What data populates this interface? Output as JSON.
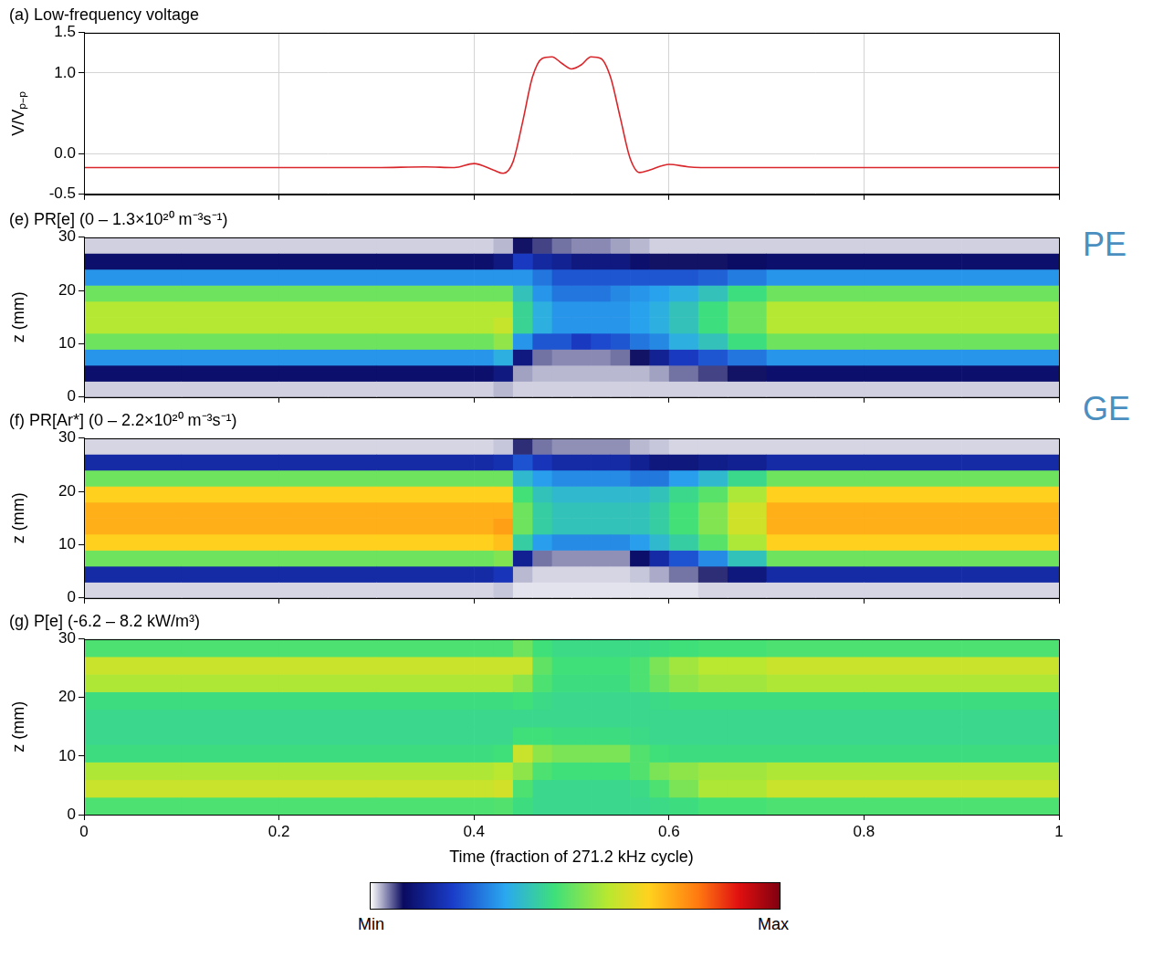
{
  "chart_data": [
    {
      "type": "line",
      "title": "(a) Low-frequency voltage",
      "y_label": "V/Vₚ₋ₚ",
      "xlim": [
        0,
        1
      ],
      "xticks": [
        0,
        0.2,
        0.4,
        0.6,
        0.8,
        1
      ],
      "ylim": [
        -0.5,
        1.5
      ],
      "yticks": [
        -0.5,
        {
          "value": 0,
          "label": "0.0"
        },
        {
          "value": 1,
          "label": "1.0"
        },
        1.5
      ],
      "grid": true,
      "tick_labels": "y",
      "x": [
        0,
        0.1,
        0.2,
        0.3,
        0.35,
        0.38,
        0.4,
        0.42,
        0.43,
        0.44,
        0.45,
        0.46,
        0.47,
        0.48,
        0.49,
        0.5,
        0.51,
        0.52,
        0.53,
        0.54,
        0.55,
        0.56,
        0.57,
        0.58,
        0.6,
        0.62,
        0.65,
        0.7,
        0.8,
        0.9,
        1
      ],
      "series": [
        {
          "name": "Low-frequency voltage",
          "color": "#d9262b",
          "values": [
            -0.17,
            -0.17,
            -0.17,
            -0.17,
            -0.16,
            -0.17,
            -0.12,
            -0.2,
            -0.24,
            -0.1,
            0.4,
            0.95,
            1.18,
            1.2,
            1.12,
            1.05,
            1.1,
            1.2,
            1.18,
            0.95,
            0.45,
            -0.05,
            -0.23,
            -0.2,
            -0.13,
            -0.16,
            -0.17,
            -0.17,
            -0.17,
            -0.17,
            -0.17
          ]
        }
      ]
    },
    {
      "type": "heatmap",
      "title": "(e) PR[e] (0 – 1.3×10²⁰ m⁻³s⁻¹)",
      "y_label": "z (mm)",
      "xlim": [
        0,
        1
      ],
      "xticks": [
        0,
        0.2,
        0.4,
        0.6,
        0.8,
        1
      ],
      "ylim": [
        0,
        30
      ],
      "yticks": [
        0,
        10,
        20,
        30
      ],
      "grid": false,
      "tick_labels": "y",
      "annotations": [
        "PE",
        "GE"
      ],
      "color_range": [
        0,
        1.3
      ],
      "x_bins": [
        0,
        0.1,
        0.2,
        0.3,
        0.4,
        0.42,
        0.44,
        0.46,
        0.48,
        0.5,
        0.52,
        0.54,
        0.56,
        0.58,
        0.6,
        0.63,
        0.66,
        0.7,
        0.8,
        0.9,
        1
      ],
      "z_bins": [
        0,
        3,
        6,
        9,
        12,
        15,
        18,
        21,
        24,
        27,
        30
      ],
      "cells": [
        [
          0.02,
          0.12,
          0.4,
          0.65,
          0.75,
          0.75,
          0.65,
          0.4,
          0.12,
          0.02
        ],
        [
          0.02,
          0.12,
          0.4,
          0.65,
          0.75,
          0.75,
          0.65,
          0.4,
          0.12,
          0.02
        ],
        [
          0.02,
          0.12,
          0.4,
          0.65,
          0.75,
          0.75,
          0.65,
          0.4,
          0.12,
          0.02
        ],
        [
          0.02,
          0.12,
          0.4,
          0.65,
          0.75,
          0.75,
          0.65,
          0.4,
          0.12,
          0.02
        ],
        [
          0.02,
          0.12,
          0.4,
          0.65,
          0.75,
          0.75,
          0.65,
          0.4,
          0.12,
          0.02
        ],
        [
          0.03,
          0.15,
          0.45,
          0.7,
          0.78,
          0.75,
          0.65,
          0.4,
          0.15,
          0.03
        ],
        [
          0.02,
          0.04,
          0.15,
          0.4,
          0.55,
          0.55,
          0.5,
          0.4,
          0.25,
          0.1
        ],
        [
          0.02,
          0.03,
          0.06,
          0.3,
          0.45,
          0.45,
          0.4,
          0.35,
          0.2,
          0.08
        ],
        [
          0.02,
          0.03,
          0.05,
          0.3,
          0.4,
          0.4,
          0.35,
          0.3,
          0.18,
          0.06
        ],
        [
          0.02,
          0.03,
          0.05,
          0.25,
          0.4,
          0.4,
          0.35,
          0.3,
          0.15,
          0.05
        ],
        [
          0.02,
          0.03,
          0.05,
          0.28,
          0.4,
          0.4,
          0.35,
          0.3,
          0.15,
          0.05
        ],
        [
          0.02,
          0.03,
          0.06,
          0.3,
          0.4,
          0.4,
          0.38,
          0.3,
          0.15,
          0.04
        ],
        [
          0.02,
          0.03,
          0.1,
          0.35,
          0.42,
          0.42,
          0.4,
          0.3,
          0.12,
          0.03
        ],
        [
          0.02,
          0.04,
          0.18,
          0.38,
          0.45,
          0.45,
          0.42,
          0.3,
          0.1,
          0.02
        ],
        [
          0.02,
          0.06,
          0.25,
          0.45,
          0.5,
          0.5,
          0.45,
          0.3,
          0.1,
          0.02
        ],
        [
          0.02,
          0.08,
          0.3,
          0.5,
          0.58,
          0.58,
          0.5,
          0.32,
          0.1,
          0.02
        ],
        [
          0.02,
          0.1,
          0.35,
          0.58,
          0.65,
          0.65,
          0.58,
          0.36,
          0.11,
          0.02
        ],
        [
          0.02,
          0.12,
          0.4,
          0.65,
          0.75,
          0.75,
          0.65,
          0.4,
          0.12,
          0.02
        ],
        [
          0.02,
          0.12,
          0.4,
          0.65,
          0.75,
          0.75,
          0.65,
          0.4,
          0.12,
          0.02
        ],
        [
          0.02,
          0.12,
          0.4,
          0.65,
          0.75,
          0.75,
          0.65,
          0.4,
          0.12,
          0.02
        ]
      ]
    },
    {
      "type": "heatmap",
      "title": "(f) PR[Ar*] (0 – 2.2×10²⁰ m⁻³s⁻¹)",
      "y_label": "z (mm)",
      "xlim": [
        0,
        1
      ],
      "xticks": [
        0,
        0.2,
        0.4,
        0.6,
        0.8,
        1
      ],
      "ylim": [
        0,
        30
      ],
      "yticks": [
        0,
        10,
        20,
        30
      ],
      "grid": false,
      "tick_labels": "y",
      "color_range": [
        0,
        2.2
      ],
      "x_bins": [
        0,
        0.1,
        0.2,
        0.3,
        0.4,
        0.42,
        0.44,
        0.46,
        0.48,
        0.5,
        0.52,
        0.54,
        0.56,
        0.58,
        0.6,
        0.63,
        0.66,
        0.7,
        0.8,
        0.9,
        1
      ],
      "z_bins": [
        0,
        3,
        6,
        9,
        12,
        15,
        18,
        21,
        24,
        27,
        30
      ],
      "cells": [
        [
          0.03,
          0.35,
          1.1,
          1.5,
          1.6,
          1.6,
          1.5,
          1.1,
          0.35,
          0.03
        ],
        [
          0.03,
          0.35,
          1.1,
          1.5,
          1.6,
          1.6,
          1.5,
          1.1,
          0.35,
          0.03
        ],
        [
          0.03,
          0.35,
          1.1,
          1.5,
          1.6,
          1.6,
          1.5,
          1.1,
          0.35,
          0.03
        ],
        [
          0.03,
          0.35,
          1.1,
          1.5,
          1.6,
          1.6,
          1.5,
          1.1,
          0.35,
          0.03
        ],
        [
          0.03,
          0.35,
          1.1,
          1.5,
          1.6,
          1.6,
          1.5,
          1.1,
          0.35,
          0.03
        ],
        [
          0.04,
          0.4,
          1.15,
          1.55,
          1.65,
          1.6,
          1.5,
          1.1,
          0.38,
          0.04
        ],
        [
          0.02,
          0.05,
          0.3,
          0.9,
          1.1,
          1.1,
          1.0,
          0.8,
          0.5,
          0.15
        ],
        [
          0.02,
          0.03,
          0.1,
          0.7,
          0.9,
          0.9,
          0.85,
          0.7,
          0.4,
          0.1
        ],
        [
          0.02,
          0.03,
          0.08,
          0.65,
          0.85,
          0.85,
          0.8,
          0.65,
          0.35,
          0.08
        ],
        [
          0.02,
          0.03,
          0.08,
          0.65,
          0.85,
          0.85,
          0.8,
          0.65,
          0.35,
          0.08
        ],
        [
          0.02,
          0.03,
          0.08,
          0.65,
          0.85,
          0.85,
          0.8,
          0.65,
          0.35,
          0.08
        ],
        [
          0.02,
          0.03,
          0.08,
          0.65,
          0.85,
          0.85,
          0.8,
          0.65,
          0.35,
          0.08
        ],
        [
          0.02,
          0.04,
          0.2,
          0.7,
          0.85,
          0.85,
          0.8,
          0.6,
          0.3,
          0.05
        ],
        [
          0.02,
          0.06,
          0.35,
          0.8,
          0.9,
          0.9,
          0.85,
          0.6,
          0.25,
          0.04
        ],
        [
          0.02,
          0.1,
          0.5,
          0.9,
          1.0,
          1.0,
          0.95,
          0.7,
          0.25,
          0.03
        ],
        [
          0.03,
          0.15,
          0.65,
          1.05,
          1.15,
          1.15,
          1.05,
          0.8,
          0.28,
          0.03
        ],
        [
          0.03,
          0.25,
          0.85,
          1.25,
          1.35,
          1.35,
          1.25,
          0.95,
          0.3,
          0.03
        ],
        [
          0.03,
          0.35,
          1.1,
          1.5,
          1.6,
          1.6,
          1.5,
          1.1,
          0.35,
          0.03
        ],
        [
          0.03,
          0.35,
          1.1,
          1.5,
          1.6,
          1.6,
          1.5,
          1.1,
          0.35,
          0.03
        ],
        [
          0.03,
          0.35,
          1.1,
          1.5,
          1.6,
          1.6,
          1.5,
          1.1,
          0.35,
          0.03
        ]
      ]
    },
    {
      "type": "heatmap",
      "title": "(g) P[e] (-6.2 – 8.2 kW/m³)",
      "y_label": "z (mm)",
      "x_label": "Time (fraction of 271.2 kHz cycle)",
      "xlim": [
        0,
        1
      ],
      "xticks": [
        0,
        0.2,
        0.4,
        0.6,
        0.8,
        1
      ],
      "ylim": [
        0,
        30
      ],
      "yticks": [
        0,
        10,
        20,
        30
      ],
      "grid": false,
      "color_range": [
        -6.2,
        8.2
      ],
      "x_bins": [
        0,
        0.1,
        0.2,
        0.3,
        0.4,
        0.42,
        0.44,
        0.46,
        0.48,
        0.5,
        0.52,
        0.54,
        0.56,
        0.58,
        0.6,
        0.63,
        0.66,
        0.7,
        0.8,
        0.9,
        1
      ],
      "z_bins": [
        0,
        3,
        6,
        9,
        12,
        15,
        18,
        21,
        24,
        27,
        30
      ],
      "cells": [
        [
          0.5,
          2.5,
          2.0,
          0.2,
          0,
          0,
          0.2,
          2.0,
          2.5,
          0.5
        ],
        [
          0.5,
          2.5,
          2.0,
          0.2,
          0,
          0,
          0.2,
          2.0,
          2.5,
          0.5
        ],
        [
          0.5,
          2.5,
          2.0,
          0.2,
          0,
          0,
          0.2,
          2.0,
          2.5,
          0.5
        ],
        [
          0.5,
          2.5,
          2.0,
          0.2,
          0,
          0,
          0.2,
          2.0,
          2.5,
          0.5
        ],
        [
          0.5,
          2.5,
          2.0,
          0.2,
          0,
          0,
          0.2,
          2.0,
          2.5,
          0.5
        ],
        [
          0.6,
          2.7,
          2.2,
          0.3,
          0,
          0,
          0.2,
          2.0,
          2.5,
          0.5
        ],
        [
          0.2,
          0.5,
          1.5,
          2.5,
          0.3,
          0,
          0.3,
          1.5,
          2.5,
          1.0
        ],
        [
          0,
          0,
          0.5,
          1.5,
          0.3,
          0,
          0.1,
          0.5,
          0.8,
          0.3
        ],
        [
          0,
          0,
          0.3,
          1.2,
          0.2,
          0,
          0,
          0.2,
          0.3,
          0.1
        ],
        [
          0,
          0,
          0.3,
          1.2,
          0.2,
          0,
          0,
          0.2,
          0.3,
          0.1
        ],
        [
          0,
          0,
          0.3,
          1.2,
          0.2,
          0,
          0,
          0.2,
          0.3,
          0.1
        ],
        [
          0,
          0,
          0.3,
          1.2,
          0.2,
          0,
          0,
          0.2,
          0.3,
          0.1
        ],
        [
          0,
          0.1,
          0.6,
          0.6,
          0.1,
          0,
          0,
          0.5,
          0.5,
          0.1
        ],
        [
          0.1,
          0.5,
          1.2,
          0.3,
          0,
          0,
          0.1,
          1.0,
          1.2,
          0.2
        ],
        [
          0.2,
          1.2,
          1.5,
          0.2,
          0,
          0,
          0.2,
          1.5,
          1.8,
          0.3
        ],
        [
          0.4,
          2.0,
          1.8,
          0.2,
          0,
          0,
          0.2,
          1.8,
          2.2,
          0.4
        ],
        [
          0.4,
          2.0,
          1.8,
          0.2,
          0,
          0,
          0.2,
          1.8,
          2.2,
          0.4
        ],
        [
          0.5,
          2.5,
          2.0,
          0.2,
          0,
          0,
          0.2,
          2.0,
          2.5,
          0.5
        ],
        [
          0.5,
          2.5,
          2.0,
          0.2,
          0,
          0,
          0.2,
          2.0,
          2.5,
          0.5
        ],
        [
          0.5,
          2.5,
          2.0,
          0.2,
          0,
          0,
          0.2,
          2.0,
          2.5,
          0.5
        ]
      ]
    }
  ],
  "colorbar": {
    "labels": [
      "Min",
      "Max"
    ]
  }
}
